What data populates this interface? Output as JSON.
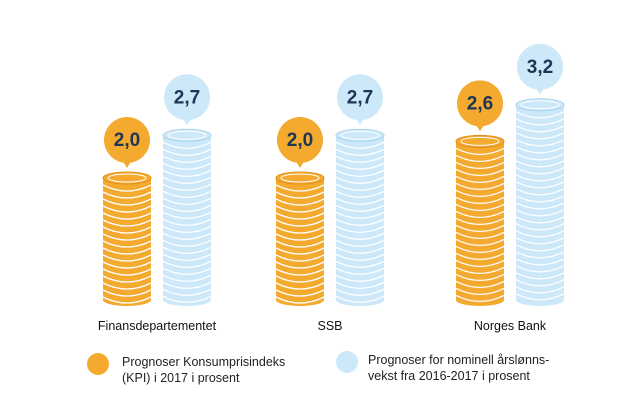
{
  "chart_data": {
    "type": "bar",
    "categories": [
      "Finansdepartementet",
      "SSB",
      "Norges Bank"
    ],
    "series": [
      {
        "name": "Prognoser Konsumprisindeks\n(KPI) i 2017 i prosent",
        "color": "#f4a92f",
        "values": [
          2.0,
          2.0,
          2.6
        ],
        "value_labels": [
          "2,0",
          "2,0",
          "2,6"
        ]
      },
      {
        "name": "Prognoser for nominell årslønns-\nvekst fra 2016-2017 i prosent",
        "color": "#cde8f8",
        "values": [
          2.7,
          2.7,
          3.2
        ],
        "value_labels": [
          "2,7",
          "2,7",
          "3,2"
        ]
      }
    ]
  }
}
